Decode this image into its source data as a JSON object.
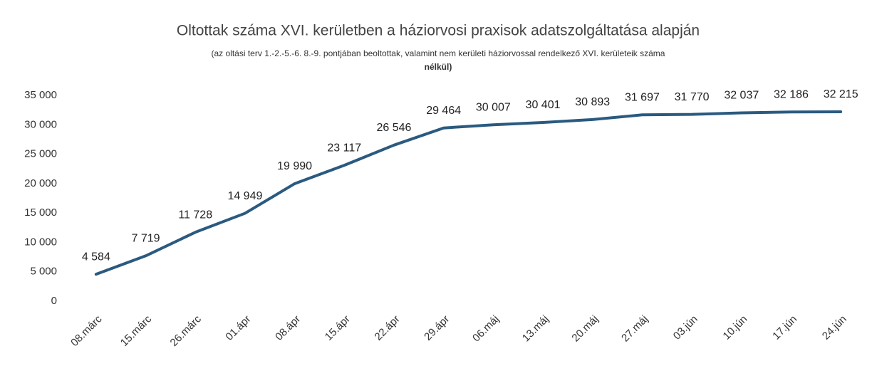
{
  "chart_data": {
    "type": "line",
    "title": "Oltottak száma XVI. kerületben a háziorvosi praxisok adatszolgáltatása alapján",
    "subtitle": [
      "(az oltási terv 1.-2.-5.-6. 8.-9. pontjában beoltottak, valamint nem kerületi háziorvossal rendelkező XVI. kerületeik száma",
      "nélkül)"
    ],
    "categories": [
      "08.márc",
      "15.márc",
      "26.márc",
      "01.ápr",
      "08.ápr",
      "15.ápr",
      "22.ápr",
      "29.ápr",
      "06.máj",
      "13.máj",
      "20.máj",
      "27.máj",
      "03.jún",
      "10.jún",
      "17.jún",
      "24.jún"
    ],
    "values": [
      4584,
      7719,
      11728,
      14949,
      19990,
      23117,
      26546,
      29464,
      30007,
      30401,
      30893,
      31697,
      31770,
      32037,
      32186,
      32215
    ],
    "value_labels": [
      "4 584",
      "7 719",
      "11 728",
      "14 949",
      "19 990",
      "23 117",
      "26 546",
      "29 464",
      "30 007",
      "30 401",
      "30 893",
      "31 697",
      "31 770",
      "32 037",
      "32 186",
      "32 215"
    ],
    "color": "#2a5a80",
    "ylim": [
      0,
      35000
    ],
    "yticks": [
      0,
      {
        "value": 5000,
        "label": "5 000"
      },
      {
        "value": 10000,
        "label": "10 000"
      },
      {
        "value": 15000,
        "label": "15 000"
      },
      {
        "value": 20000,
        "label": "20 000"
      },
      {
        "value": 25000,
        "label": "25 000"
      },
      {
        "value": 30000,
        "label": "30 000"
      },
      {
        "value": 35000,
        "label": "35 000"
      }
    ],
    "grid": false
  }
}
